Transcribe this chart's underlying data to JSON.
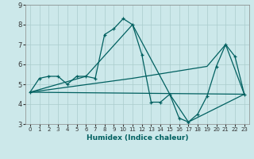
{
  "xlabel": "Humidex (Indice chaleur)",
  "ylabel": "",
  "background_color": "#cce8ea",
  "grid_color": "#aacccc",
  "line_color": "#006060",
  "xlim": [
    -0.5,
    23.5
  ],
  "ylim": [
    3,
    9
  ],
  "yticks": [
    3,
    4,
    5,
    6,
    7,
    8,
    9
  ],
  "xticks": [
    0,
    1,
    2,
    3,
    4,
    5,
    6,
    7,
    8,
    9,
    10,
    11,
    12,
    13,
    14,
    15,
    16,
    17,
    18,
    19,
    20,
    21,
    22,
    23
  ],
  "series1_x": [
    0,
    1,
    2,
    3,
    4,
    5,
    6,
    7,
    8,
    9,
    10,
    11,
    12,
    13,
    14,
    15,
    16,
    17,
    18,
    19,
    20,
    21,
    22,
    23
  ],
  "series1_y": [
    4.6,
    5.3,
    5.4,
    5.4,
    5.0,
    5.4,
    5.4,
    5.3,
    7.5,
    7.8,
    8.3,
    8.0,
    6.5,
    4.1,
    4.1,
    4.5,
    3.3,
    3.1,
    3.5,
    4.4,
    5.9,
    7.0,
    6.4,
    4.5
  ],
  "series2_x": [
    0,
    23
  ],
  "series2_y": [
    4.6,
    4.5
  ],
  "series3_x": [
    0,
    6,
    11,
    15,
    17,
    23
  ],
  "series3_y": [
    4.6,
    5.4,
    8.0,
    4.5,
    3.1,
    4.5
  ],
  "series4_x": [
    0,
    11,
    19,
    21,
    23
  ],
  "series4_y": [
    4.6,
    5.3,
    5.9,
    7.0,
    4.5
  ]
}
